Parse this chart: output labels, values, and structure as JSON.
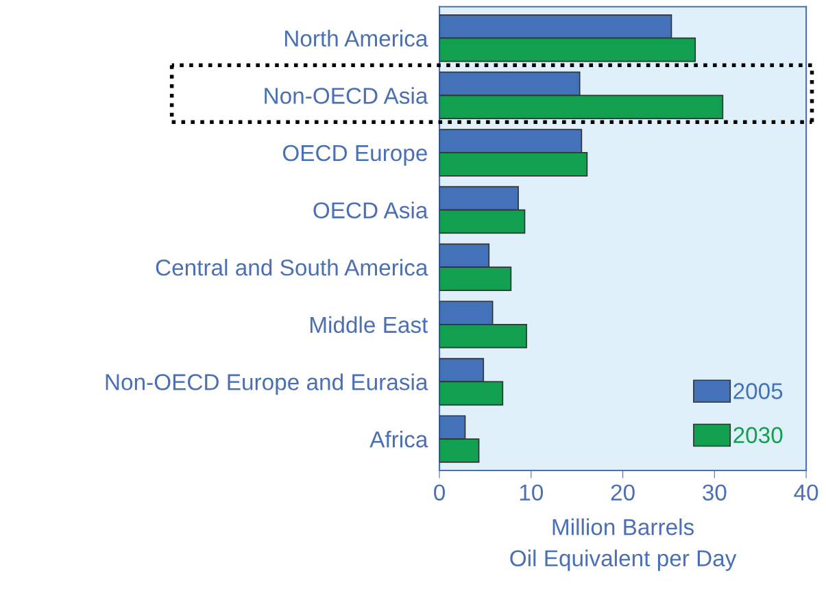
{
  "chart_data": {
    "type": "bar",
    "orientation": "horizontal",
    "categories": [
      "North America",
      "Non-OECD Asia",
      "OECD Europe",
      "OECD Asia",
      "Central and South America",
      "Middle East",
      "Non-OECD Europe and Eurasia",
      "Africa"
    ],
    "series": [
      {
        "name": "2005",
        "color": "#4472b8",
        "values": [
          25.3,
          15.3,
          15.5,
          8.6,
          5.4,
          5.8,
          4.8,
          2.8
        ]
      },
      {
        "name": "2030",
        "color": "#10a050",
        "values": [
          27.9,
          30.9,
          16.1,
          9.3,
          7.8,
          9.5,
          6.9,
          4.3
        ]
      }
    ],
    "xlim": [
      0,
      40
    ],
    "xticks": [
      0,
      10,
      20,
      30,
      40
    ],
    "xlabel": "Million Barrels\nOil Equivalent per Day",
    "legend": "lower right",
    "grid": false
  }
}
